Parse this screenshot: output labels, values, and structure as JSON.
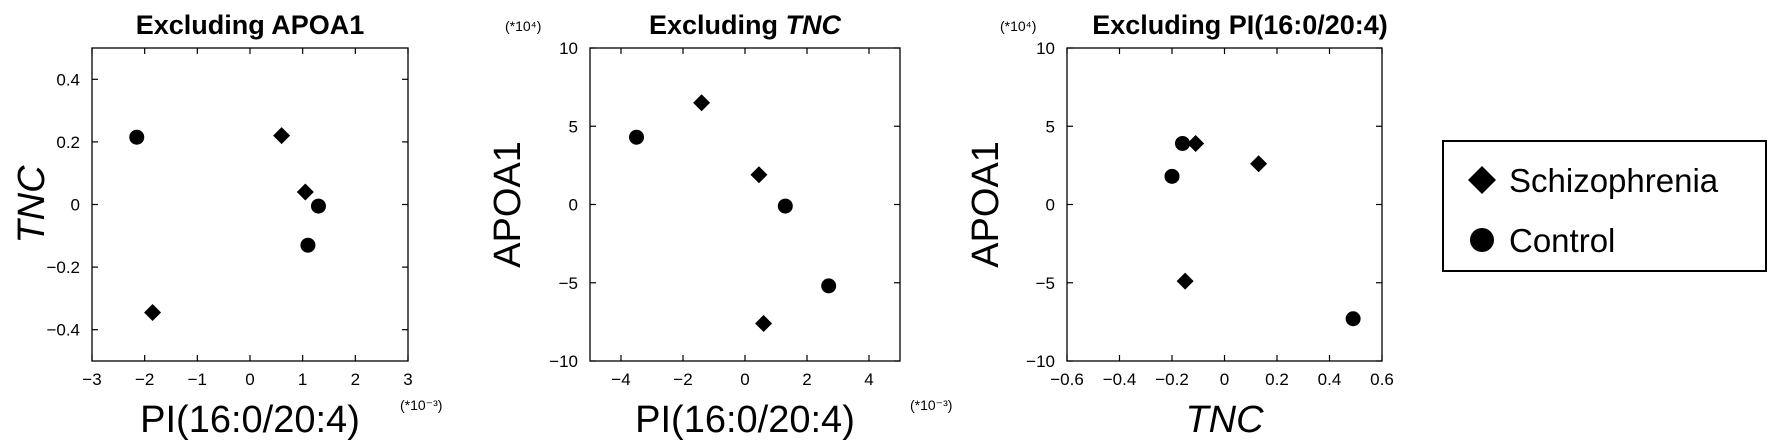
{
  "legend": {
    "items": [
      {
        "label": "Schizophrenia",
        "marker": "diamond"
      },
      {
        "label": "Control",
        "marker": "circle"
      }
    ]
  },
  "chart_data": [
    {
      "type": "scatter",
      "title": "Excluding APOA1",
      "title_italic": "",
      "xlabel": "PI(16:0/20:4)",
      "xlabel_italic": false,
      "ylabel": "TNC",
      "ylabel_italic": true,
      "x_multiplier": "(*10⁻³)",
      "y_multiplier": "",
      "xlim": [
        -3,
        3
      ],
      "ylim": [
        -0.5,
        0.5
      ],
      "xticks": [
        -3,
        -2,
        -1,
        0,
        1,
        2,
        3
      ],
      "yticks": [
        -0.4,
        -0.2,
        0,
        0.2,
        0.4
      ],
      "xtick_labels": [
        "−3",
        "−2",
        "−1",
        "0",
        "1",
        "2",
        "3"
      ],
      "ytick_labels": [
        "−0.4",
        "−0.2",
        "0",
        "0.2",
        "0.4"
      ],
      "grid": false,
      "series": [
        {
          "name": "Schizophrenia",
          "marker": "diamond",
          "points": [
            [
              0.6,
              0.22
            ],
            [
              1.05,
              0.04
            ],
            [
              -1.85,
              -0.345
            ]
          ]
        },
        {
          "name": "Control",
          "marker": "circle",
          "points": [
            [
              -2.15,
              0.215
            ],
            [
              1.3,
              -0.005
            ],
            [
              1.1,
              -0.13
            ]
          ]
        }
      ]
    },
    {
      "type": "scatter",
      "title": "Excluding ",
      "title_italic": "TNC",
      "xlabel": "PI(16:0/20:4)",
      "xlabel_italic": false,
      "ylabel": "APOA1",
      "ylabel_italic": false,
      "x_multiplier": "(*10⁻³)",
      "y_multiplier": "(*10⁴)",
      "xlim": [
        -5,
        5
      ],
      "ylim": [
        -10,
        10
      ],
      "xticks": [
        -4,
        -2,
        0,
        2,
        4
      ],
      "yticks": [
        -10,
        -5,
        0,
        5,
        10
      ],
      "xtick_labels": [
        "−4",
        "−2",
        "0",
        "2",
        "4"
      ],
      "ytick_labels": [
        "−10",
        "−5",
        "0",
        "5",
        "10"
      ],
      "grid": false,
      "series": [
        {
          "name": "Schizophrenia",
          "marker": "diamond",
          "points": [
            [
              -1.4,
              6.5
            ],
            [
              0.45,
              1.9
            ],
            [
              0.6,
              -7.6
            ]
          ]
        },
        {
          "name": "Control",
          "marker": "circle",
          "points": [
            [
              -3.5,
              4.3
            ],
            [
              1.3,
              -0.1
            ],
            [
              2.7,
              -5.2
            ]
          ]
        }
      ]
    },
    {
      "type": "scatter",
      "title": "Excluding PI(16:0/20:4)",
      "title_italic": "",
      "xlabel": "TNC",
      "xlabel_italic": true,
      "ylabel": "APOA1",
      "ylabel_italic": false,
      "x_multiplier": "",
      "y_multiplier": "(*10⁴)",
      "xlim": [
        -0.6,
        0.6
      ],
      "ylim": [
        -10,
        10
      ],
      "xticks": [
        -0.6,
        -0.4,
        -0.2,
        0,
        0.2,
        0.4,
        0.6
      ],
      "yticks": [
        -10,
        -5,
        0,
        5,
        10
      ],
      "xtick_labels": [
        "−0.6",
        "−0.4",
        "−0.2",
        "0",
        "0.2",
        "0.4",
        "0.6"
      ],
      "ytick_labels": [
        "−10",
        "−5",
        "0",
        "5",
        "10"
      ],
      "grid": false,
      "series": [
        {
          "name": "Schizophrenia",
          "marker": "diamond",
          "points": [
            [
              -0.11,
              3.9
            ],
            [
              0.13,
              2.6
            ],
            [
              -0.15,
              -4.9
            ]
          ]
        },
        {
          "name": "Control",
          "marker": "circle",
          "points": [
            [
              -0.16,
              3.9
            ],
            [
              -0.2,
              1.8
            ],
            [
              0.49,
              -7.3
            ]
          ]
        }
      ]
    }
  ]
}
